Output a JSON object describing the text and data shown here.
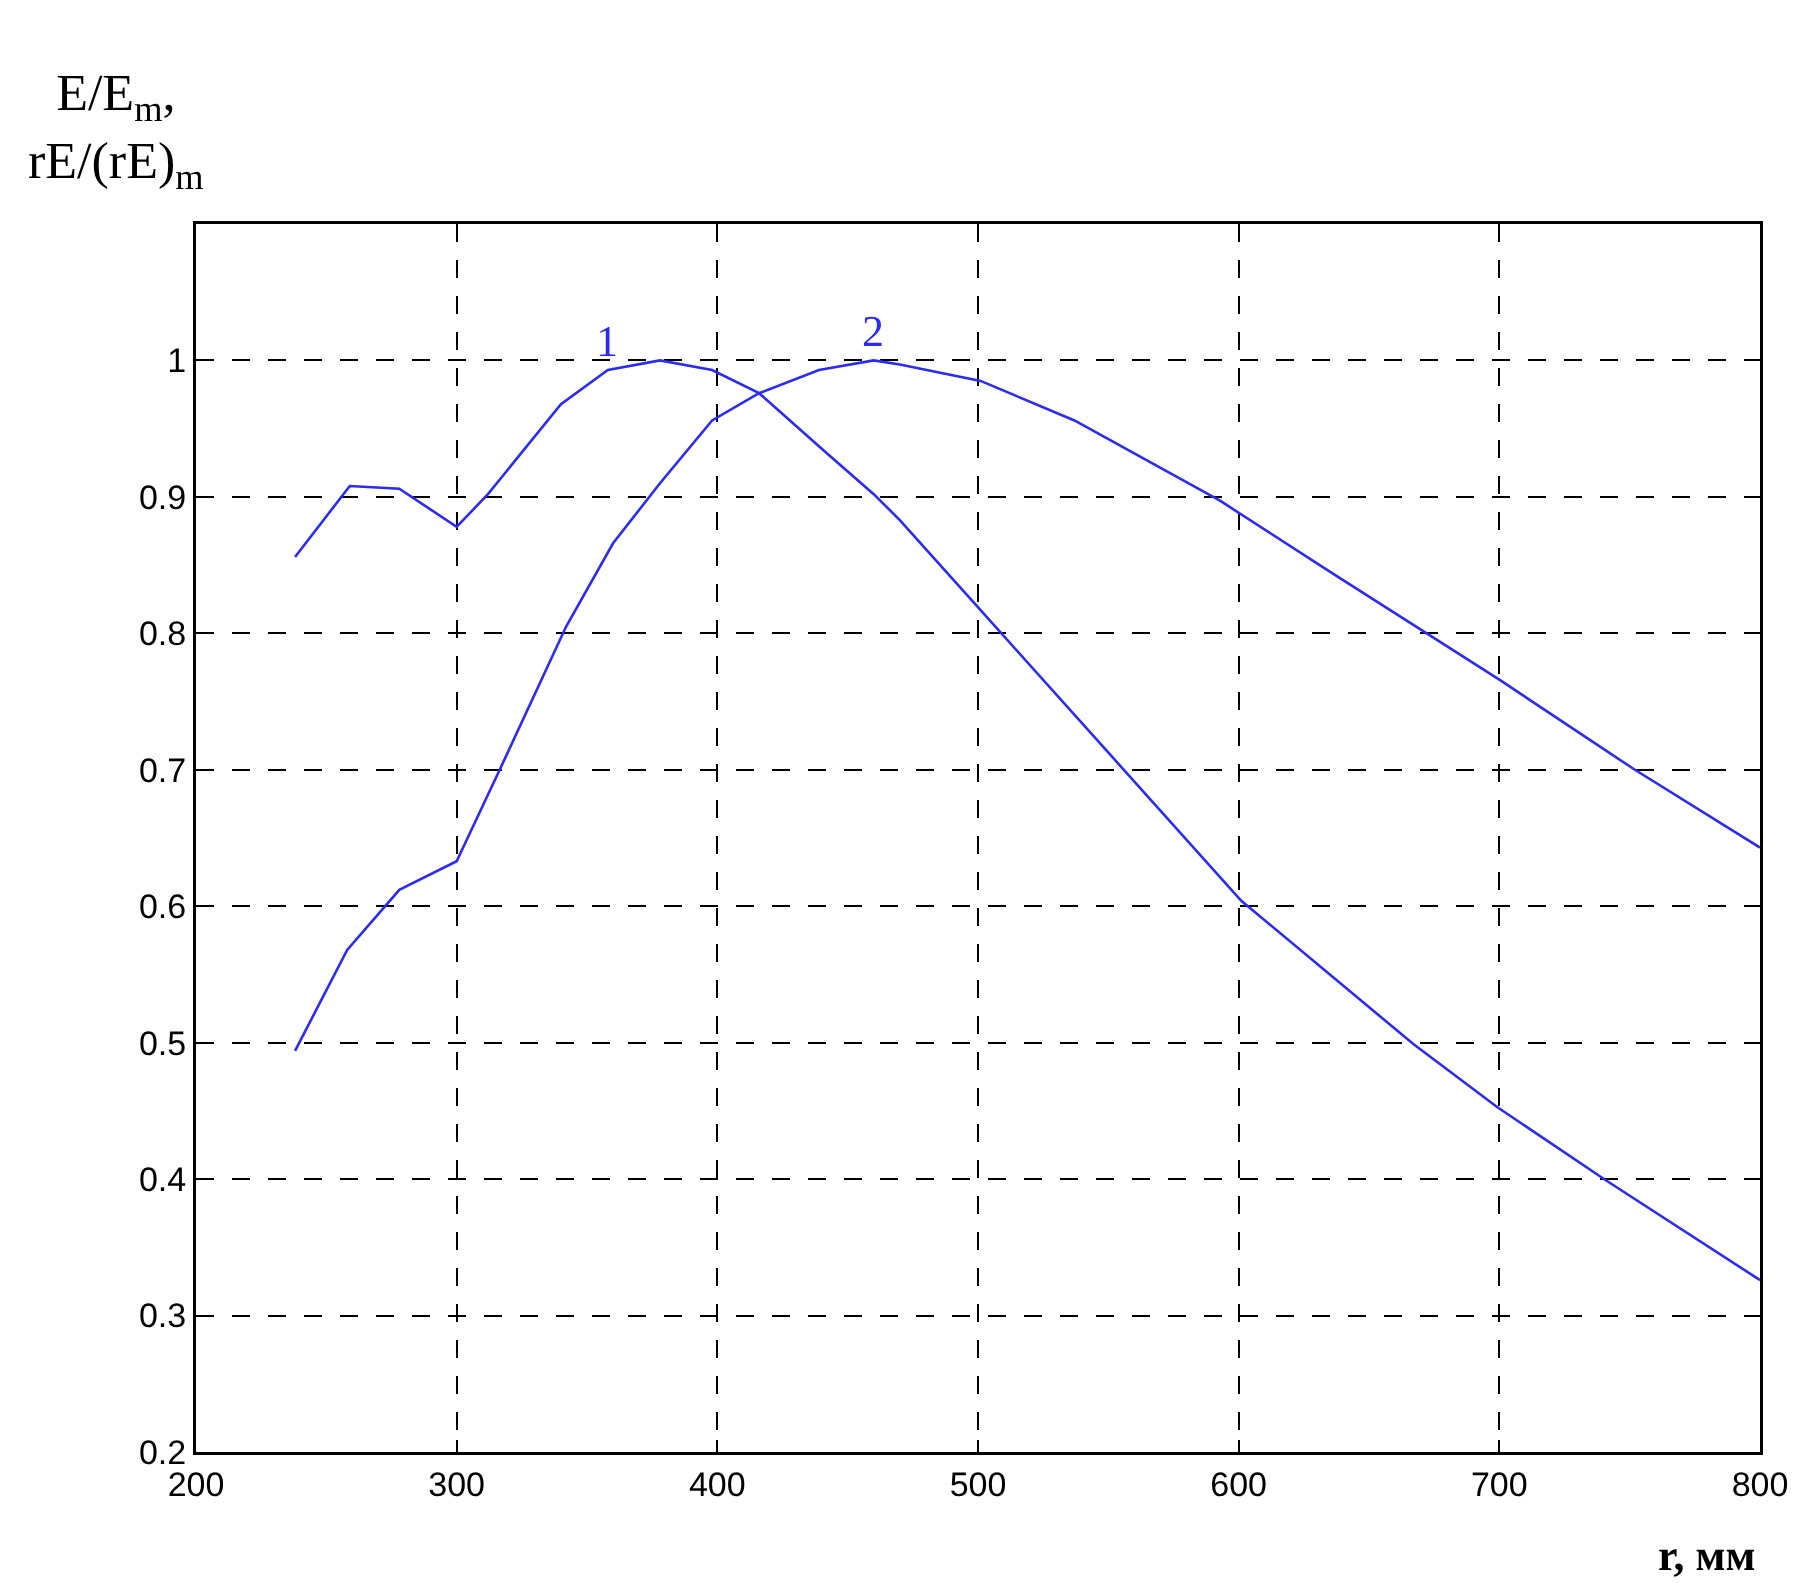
{
  "chart_data": {
    "type": "line",
    "xlabel": "r, мм",
    "ylabel": "E/E$_{m}$,\nrE/(rE)$_{m}$",
    "series": [
      {
        "color": "#2b2bf5",
        "x": [
          238,
          259,
          278,
          300,
          312,
          340,
          358,
          378,
          398,
          416,
          442,
          460,
          470,
          501,
          555,
          601,
          667,
          699,
          741,
          800
        ],
        "values": [
          0.856,
          0.908,
          0.906,
          0.878,
          0.902,
          0.968,
          0.993,
          1.0,
          0.993,
          0.976,
          0.932,
          0.902,
          0.883,
          0.817,
          0.702,
          0.604,
          0.499,
          0.453,
          0.399,
          0.326
        ]
      },
      {
        "color": "#2b2bf5",
        "x": [
          238,
          258,
          278,
          300,
          317,
          342,
          360,
          378,
          398,
          416,
          439,
          460,
          470,
          501,
          537,
          593,
          636,
          700,
          752,
          800
        ],
        "values": [
          0.494,
          0.568,
          0.612,
          0.633,
          0.702,
          0.805,
          0.866,
          0.91,
          0.956,
          0.976,
          0.993,
          1.0,
          0.997,
          0.985,
          0.956,
          0.897,
          0.844,
          0.766,
          0.7,
          0.643
        ]
      }
    ],
    "annotations": [
      {
        "text": "1",
        "x": 358,
        "y": 0.993
      },
      {
        "text": "2",
        "x": 460,
        "y": 1.0
      }
    ],
    "xlim": [
      200,
      800
    ],
    "xticks": [
      200,
      300,
      400,
      500,
      600,
      700,
      800
    ],
    "ylim": [
      0.2,
      1.1
    ],
    "yticks": [
      0.2,
      0.3,
      0.4,
      0.5,
      0.6,
      0.7,
      0.8,
      0.9,
      1
    ],
    "grid": true,
    "line_style": "solid",
    "marker": "none"
  }
}
